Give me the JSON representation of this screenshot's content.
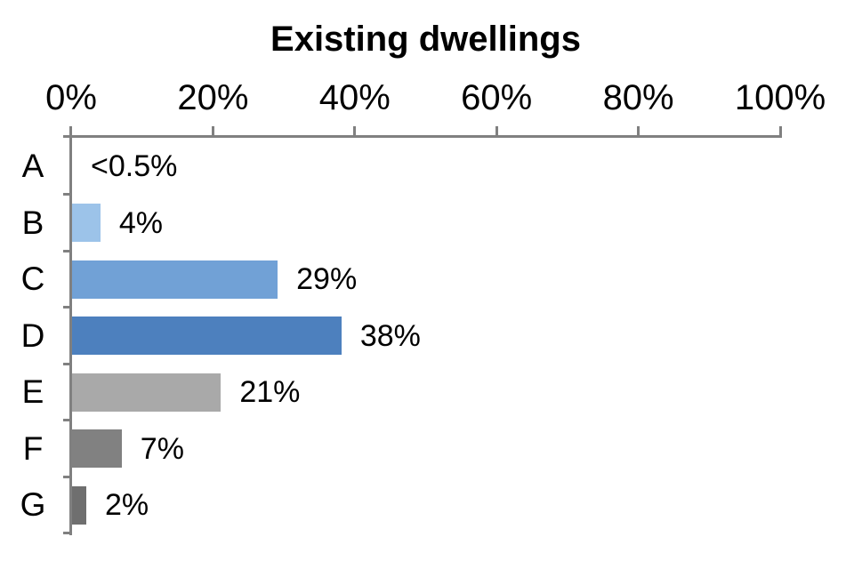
{
  "title": "Existing dwellings",
  "colors": {
    "background": "#ffffff",
    "axis": "#808080",
    "text": "#000000"
  },
  "chart_data": {
    "type": "bar",
    "orientation": "horizontal",
    "title": "Existing dwellings",
    "categories": [
      "A",
      "B",
      "C",
      "D",
      "E",
      "F",
      "G"
    ],
    "values": [
      0,
      4,
      29,
      38,
      21,
      7,
      2
    ],
    "value_labels": [
      "<0.5%",
      "4%",
      "29%",
      "38%",
      "21%",
      "7%",
      "2%"
    ],
    "bar_colors": [
      null,
      "#9CC3E9",
      "#71A1D6",
      "#4D80BE",
      "#A9A9A9",
      "#818181",
      "#6F6F6F"
    ],
    "x_ticks": [
      "0%",
      "20%",
      "40%",
      "60%",
      "80%",
      "100%"
    ],
    "x_tick_values": [
      0,
      20,
      40,
      60,
      80,
      100
    ],
    "xlim": [
      0,
      100
    ],
    "x_axis_position": "top",
    "grid": false,
    "legend": false
  }
}
